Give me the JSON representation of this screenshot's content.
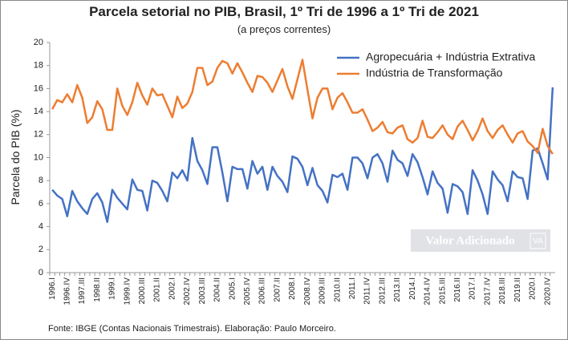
{
  "chart_data": {
    "type": "line",
    "title": "Parcela setorial no PIB, Brasil, 1º Tri de 1996 a 1º Tri de 2021",
    "subtitle": "(a preços correntes)",
    "y_label": "Parcela do PIB (%)",
    "source": "Fonte: IBGE (Contas Nacionais Trimestrais). Elaboração: Paulo Morceiro.",
    "watermark": "Valor Adicionado",
    "watermark_logo": "VA",
    "categories": [
      "1996.I",
      null,
      null,
      "1996.IV",
      null,
      null,
      "1997.III",
      null,
      null,
      "1998.II",
      null,
      null,
      "1999.I",
      null,
      null,
      "1999.IV",
      null,
      null,
      "2000.III",
      null,
      null,
      "2001.II",
      null,
      null,
      "2002.I",
      null,
      null,
      "2002.IV",
      null,
      null,
      "2003.III",
      null,
      null,
      "2004.II",
      null,
      null,
      "2005.I",
      null,
      null,
      "2005.IV",
      null,
      null,
      "2006.III",
      null,
      null,
      "2007.II",
      null,
      null,
      "2008.I",
      null,
      null,
      "2008.IV",
      null,
      null,
      "2009.III",
      null,
      null,
      "2010.II",
      null,
      null,
      "2011.I",
      null,
      null,
      "2011.IV",
      null,
      null,
      "2012.III",
      null,
      null,
      "2013.II",
      null,
      null,
      "2014.I",
      null,
      null,
      "2014.IV",
      null,
      null,
      "2015.III",
      null,
      null,
      "2016.II",
      null,
      null,
      "2017.I",
      null,
      null,
      "2017.IV",
      null,
      null,
      "2018.III",
      null,
      null,
      "2019.II",
      null,
      null,
      "2020.I",
      null,
      null,
      "2020.IV",
      null
    ],
    "series": [
      {
        "name": "Agropecuária + Indústria Extrativa",
        "color": "#4472c4",
        "values": [
          7.2,
          6.7,
          6.4,
          4.9,
          7.1,
          6.2,
          5.6,
          5.1,
          6.4,
          6.9,
          6.1,
          4.4,
          7.2,
          6.5,
          6.0,
          5.5,
          8.1,
          7.2,
          7.1,
          5.4,
          8.0,
          7.8,
          7.1,
          6.2,
          8.7,
          8.2,
          8.9,
          8.0,
          11.7,
          9.7,
          8.9,
          7.7,
          10.9,
          10.9,
          8.7,
          6.2,
          9.2,
          9.0,
          9.0,
          7.3,
          9.7,
          8.6,
          9.2,
          7.2,
          9.2,
          8.4,
          7.9,
          7.0,
          10.1,
          9.9,
          9.2,
          7.6,
          9.1,
          7.6,
          7.1,
          6.1,
          8.5,
          8.3,
          8.6,
          7.2,
          10.0,
          10.0,
          9.5,
          8.2,
          10.0,
          10.3,
          9.5,
          7.9,
          10.6,
          9.8,
          9.5,
          8.4,
          10.3,
          9.6,
          8.3,
          6.8,
          8.8,
          7.8,
          7.3,
          5.2,
          7.7,
          7.5,
          7.0,
          5.1,
          8.9,
          8.0,
          6.8,
          5.1,
          8.8,
          8.1,
          7.6,
          6.2,
          8.8,
          8.3,
          8.2,
          6.4,
          10.6,
          10.8,
          9.5,
          8.1,
          16.1
        ]
      },
      {
        "name": "Indústria de Transformação",
        "color": "#ed7d31",
        "values": [
          14.2,
          15.0,
          14.8,
          15.5,
          14.8,
          16.3,
          15.2,
          13.0,
          13.5,
          14.9,
          14.2,
          12.4,
          12.4,
          16.0,
          14.5,
          13.7,
          14.8,
          16.5,
          15.4,
          14.6,
          16.0,
          15.4,
          15.5,
          14.5,
          13.5,
          15.3,
          14.3,
          14.7,
          15.7,
          17.8,
          17.8,
          16.3,
          16.6,
          17.8,
          18.4,
          18.2,
          17.3,
          18.2,
          17.4,
          16.5,
          15.7,
          17.1,
          17.0,
          16.5,
          15.7,
          16.7,
          17.7,
          16.2,
          15.1,
          16.8,
          18.5,
          15.9,
          13.4,
          15.2,
          16.0,
          16.0,
          14.2,
          15.2,
          15.6,
          14.8,
          13.9,
          13.9,
          14.2,
          13.3,
          12.3,
          12.6,
          13.1,
          12.2,
          12.1,
          12.6,
          12.8,
          11.6,
          11.3,
          11.7,
          13.2,
          11.8,
          11.7,
          12.2,
          12.8,
          12.0,
          11.6,
          12.7,
          13.2,
          12.4,
          11.5,
          12.3,
          13.4,
          12.3,
          11.7,
          12.4,
          12.8,
          12.0,
          11.3,
          12.1,
          12.3,
          11.4,
          11.0,
          10.4,
          12.5,
          11.0,
          10.3
        ]
      }
    ],
    "ylim": [
      0,
      20
    ],
    "yticks": [
      0,
      2,
      4,
      6,
      8,
      10,
      12,
      14,
      16,
      18,
      20
    ],
    "grid": false,
    "legend": "upper right"
  }
}
